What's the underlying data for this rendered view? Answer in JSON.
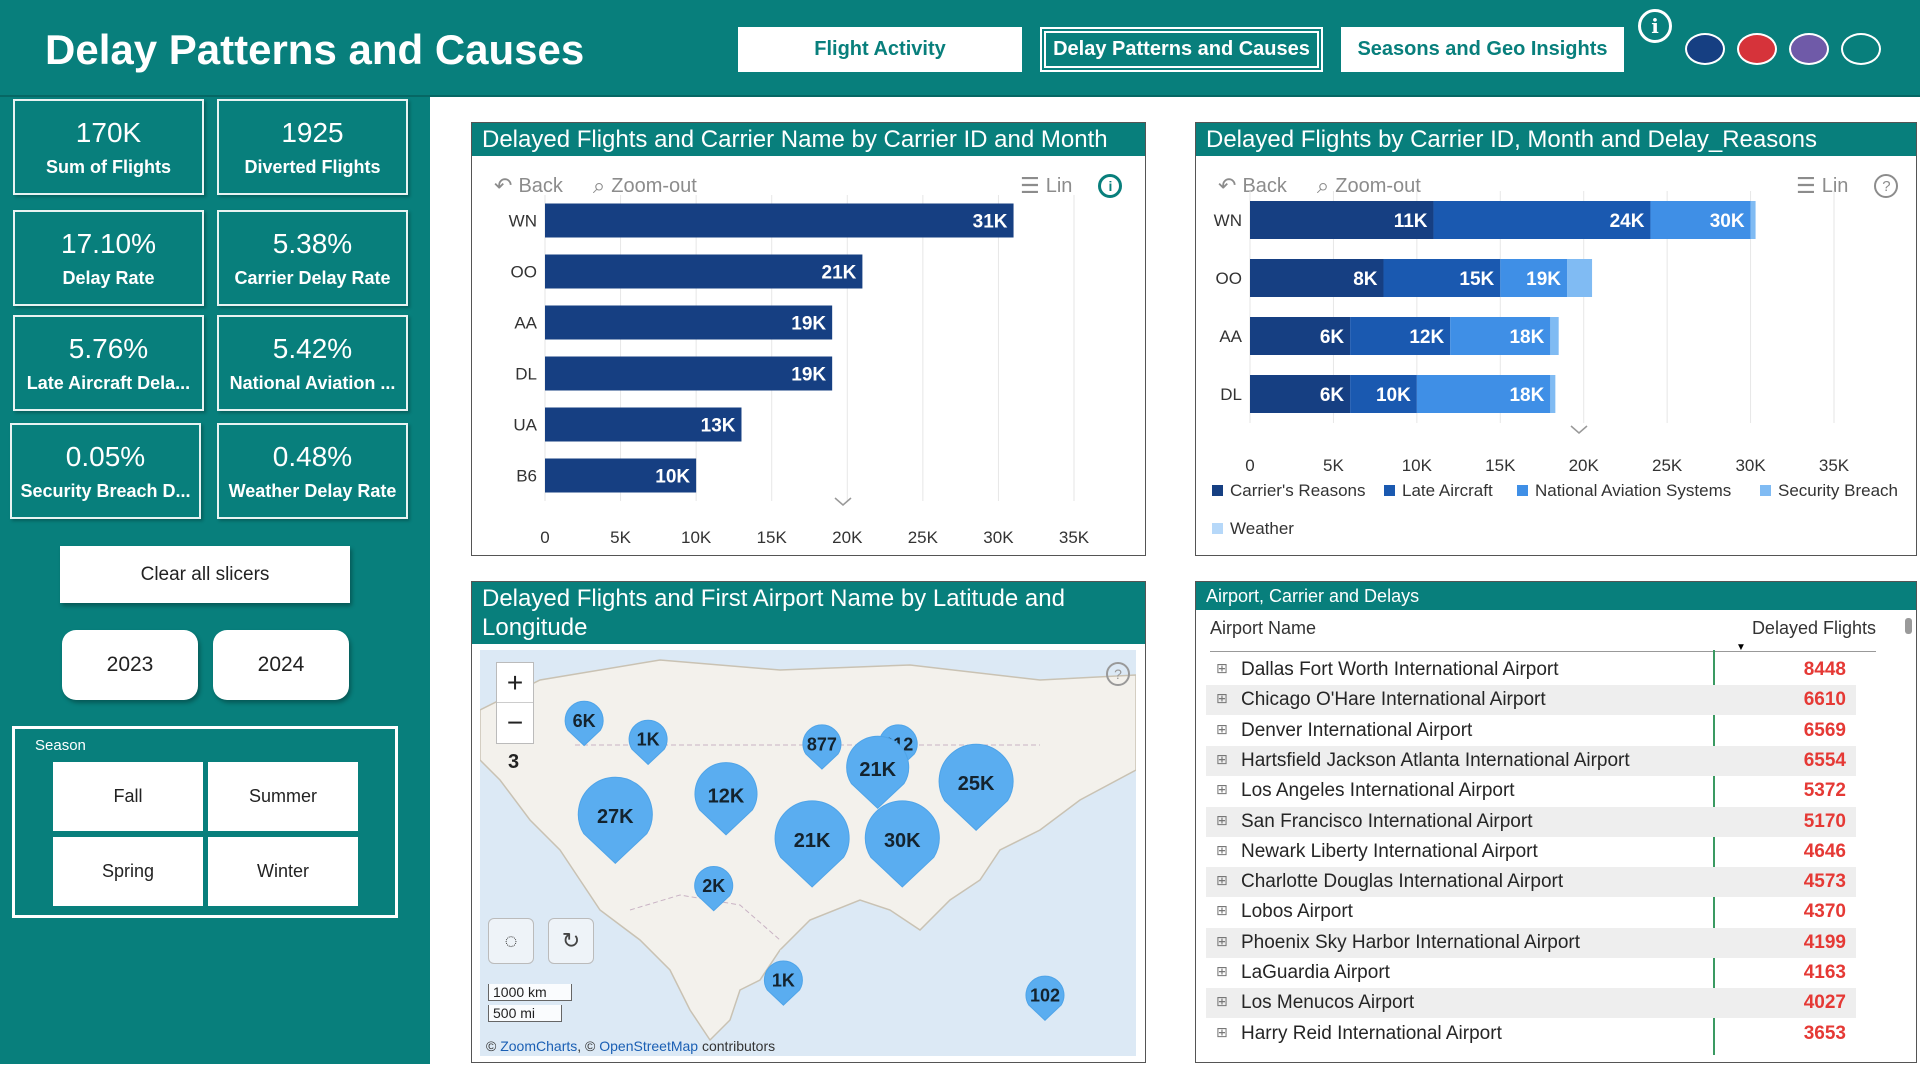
{
  "header": {
    "title": "Delay Patterns and Causes",
    "nav": [
      {
        "label": "Flight Activity",
        "active": false
      },
      {
        "label": "Delay Patterns and Causes",
        "active": true
      },
      {
        "label": "Seasons and Geo Insights",
        "active": false
      }
    ],
    "info_icon": "info-icon",
    "theme_colors": [
      "#163f82",
      "#d6333a",
      "#6f5aa8",
      "#087f7c"
    ]
  },
  "kpis": [
    {
      "value": "170K",
      "label": "Sum of Flights"
    },
    {
      "value": "1925",
      "label": "Diverted Flights"
    },
    {
      "value": "17.10%",
      "label": "Delay Rate"
    },
    {
      "value": "5.38%",
      "label": "Carrier Delay Rate"
    },
    {
      "value": "5.76%",
      "label": "Late Aircraft Dela..."
    },
    {
      "value": "5.42%",
      "label": "National Aviation ..."
    },
    {
      "value": "0.05%",
      "label": "Security Breach D..."
    },
    {
      "value": "0.48%",
      "label": "Weather Delay Rate"
    }
  ],
  "slicers": {
    "clear_label": "Clear all slicers",
    "years": [
      "2023",
      "2024"
    ],
    "season_title": "Season",
    "seasons": [
      "Fall",
      "Summer",
      "Spring",
      "Winter"
    ]
  },
  "chart_toolbar": {
    "back": "Back",
    "zoom_out": "Zoom-out",
    "lin": "Lin"
  },
  "chart_data": [
    {
      "type": "bar",
      "title": "Delayed Flights and Carrier Name by Carrier ID and Month",
      "categories": [
        "WN",
        "OO",
        "AA",
        "DL",
        "UA",
        "B6"
      ],
      "values": [
        31000,
        21000,
        19000,
        19000,
        13000,
        10000
      ],
      "value_labels": [
        "31K",
        "21K",
        "19K",
        "19K",
        "13K",
        "10K"
      ],
      "xlim": [
        0,
        35000
      ],
      "x_ticks": [
        "0",
        "5K",
        "10K",
        "15K",
        "20K",
        "25K",
        "30K",
        "35K"
      ],
      "color": "#163f82"
    },
    {
      "type": "bar",
      "stacked": true,
      "title": "Delayed Flights by Carrier ID, Month and Delay_Reasons",
      "categories": [
        "WN",
        "OO",
        "AA",
        "DL"
      ],
      "series": [
        {
          "name": "Carrier's Reasons",
          "color": "#163f82",
          "values": [
            11000,
            8000,
            6000,
            6000
          ]
        },
        {
          "name": "Late Aircraft",
          "color": "#1a59b0",
          "values": [
            13000,
            7000,
            6000,
            4000
          ]
        },
        {
          "name": "National Aviation Systems",
          "color": "#3f8fe6",
          "values": [
            6000,
            4000,
            6000,
            8000
          ]
        },
        {
          "name": "Security Breach",
          "color": "#80bbf3",
          "values": [
            300,
            1500,
            500,
            300
          ]
        },
        {
          "name": "Weather",
          "color": "#b6d8f9",
          "values": [
            0,
            0,
            0,
            0
          ]
        }
      ],
      "cumulative_labels": [
        [
          "11K",
          "24K",
          "30K"
        ],
        [
          "8K",
          "15K",
          "19K"
        ],
        [
          "6K",
          "12K",
          "18K"
        ],
        [
          "6K",
          "10K",
          "18K"
        ]
      ],
      "xlim": [
        0,
        35000
      ],
      "x_ticks": [
        "0",
        "5K",
        "10K",
        "15K",
        "20K",
        "25K",
        "30K",
        "35K"
      ],
      "legend_position": "bottom"
    },
    {
      "type": "map",
      "title": "Delayed Flights and First Airport Name by Latitude and Longitude",
      "zoom_level": "3",
      "markers": [
        {
          "label": "6K",
          "lon": -122.3,
          "lat": 47.5,
          "size": "small"
        },
        {
          "label": "1K",
          "lon": -114.5,
          "lat": 45.5,
          "size": "small"
        },
        {
          "label": "877",
          "lon": -93.3,
          "lat": 45.0,
          "size": "small"
        },
        {
          "label": "312",
          "lon": -84.0,
          "lat": 45.0,
          "size": "small"
        },
        {
          "label": "21K",
          "lon": -86.5,
          "lat": 42.5,
          "size": "medium"
        },
        {
          "label": "25K",
          "lon": -74.5,
          "lat": 41.0,
          "size": "large"
        },
        {
          "label": "27K",
          "lon": -118.5,
          "lat": 37.5,
          "size": "large"
        },
        {
          "label": "12K",
          "lon": -105.0,
          "lat": 39.7,
          "size": "medium"
        },
        {
          "label": "21K",
          "lon": -94.5,
          "lat": 35.0,
          "size": "large"
        },
        {
          "label": "30K",
          "lon": -83.5,
          "lat": 35.0,
          "size": "large"
        },
        {
          "label": "2K",
          "lon": -106.5,
          "lat": 30.0,
          "size": "small"
        },
        {
          "label": "1K",
          "lon": -98.0,
          "lat": 20.0,
          "size": "small"
        },
        {
          "label": "102",
          "lon": -66.1,
          "lat": 18.4,
          "size": "small"
        }
      ],
      "scale_km": "1000 km",
      "scale_mi": "500 mi",
      "attribution_prefix": "©",
      "attribution_zoomcharts": "ZoomCharts",
      "attribution_sep": ", ©",
      "attribution_osm": "OpenStreetMap",
      "attribution_suffix": "contributors"
    },
    {
      "type": "table",
      "title": "Airport, Carrier and Delays",
      "columns": [
        "Airport Name",
        "Delayed Flights"
      ],
      "rows": [
        [
          "Dallas Fort Worth International Airport",
          "8448"
        ],
        [
          "Chicago O'Hare International Airport",
          "6610"
        ],
        [
          "Denver International Airport",
          "6569"
        ],
        [
          "Hartsfield Jackson Atlanta International Airport",
          "6554"
        ],
        [
          "Los Angeles International Airport",
          "5372"
        ],
        [
          "San Francisco International Airport",
          "5170"
        ],
        [
          "Newark Liberty International Airport",
          "4646"
        ],
        [
          "Charlotte Douglas International Airport",
          "4573"
        ],
        [
          "Lobos Airport",
          "4370"
        ],
        [
          "Phoenix Sky Harbor International Airport",
          "4199"
        ],
        [
          "LaGuardia Airport",
          "4163"
        ],
        [
          "Los Menucos Airport",
          "4027"
        ],
        [
          "Harry Reid International Airport",
          "3653"
        ]
      ]
    }
  ]
}
